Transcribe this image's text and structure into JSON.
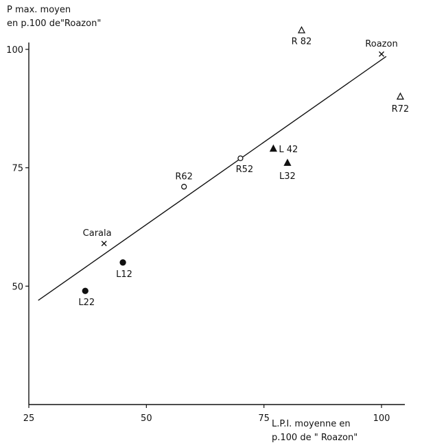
{
  "chart_data": {
    "type": "scatter",
    "title": "",
    "ylabel_lines": [
      "P max. moyen",
      "en p.100 de\"Roazon\""
    ],
    "xlabel_lines": [
      "L.P.I. moyenne en",
      "p.100 de \" Roazon\""
    ],
    "xlim": [
      25,
      105
    ],
    "ylim": [
      25,
      105
    ],
    "xticks": [
      25,
      50,
      75,
      100
    ],
    "yticks": [
      50,
      75,
      100
    ],
    "grid": false,
    "legend": "none",
    "points": [
      {
        "label": "Roazon",
        "x": 100,
        "y": 99,
        "marker": "cross"
      },
      {
        "label": "R 82",
        "x": 83,
        "y": 104,
        "marker": "triangle-open"
      },
      {
        "label": "R72",
        "x": 104,
        "y": 90,
        "marker": "triangle-open"
      },
      {
        "label": "L 42",
        "x": 77,
        "y": 79,
        "marker": "triangle-filled"
      },
      {
        "label": "L32",
        "x": 80,
        "y": 76,
        "marker": "triangle-filled"
      },
      {
        "label": "R52",
        "x": 70,
        "y": 77,
        "marker": "circle-open"
      },
      {
        "label": "R62",
        "x": 58,
        "y": 71,
        "marker": "circle-open"
      },
      {
        "label": "Carala",
        "x": 41,
        "y": 59,
        "marker": "cross"
      },
      {
        "label": "L12",
        "x": 45,
        "y": 55,
        "marker": "circle-filled"
      },
      {
        "label": "L22",
        "x": 37,
        "y": 49,
        "marker": "circle-filled"
      }
    ],
    "regression_line": {
      "x": [
        27,
        101
      ],
      "y": [
        47,
        98.5
      ]
    }
  }
}
